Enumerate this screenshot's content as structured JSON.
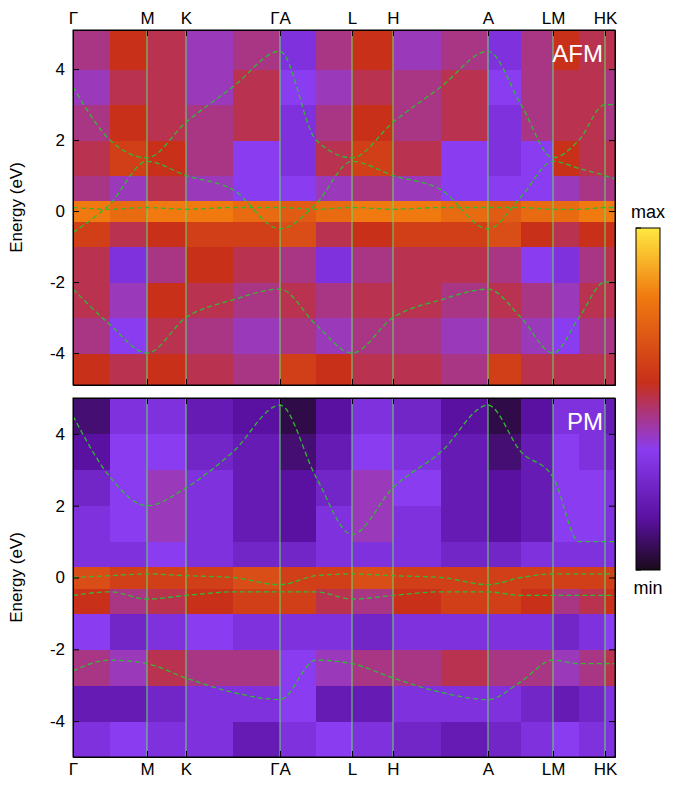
{
  "chart_data": [
    {
      "type": "heatmap",
      "title": "AFM",
      "y_label": "Energy (eV)",
      "xlim": [
        0,
        542
      ],
      "ylim": [
        -4.9,
        5.1
      ],
      "xticks": [
        {
          "value": 0,
          "label": "Γ"
        },
        {
          "value": 74,
          "label": "M"
        },
        {
          "value": 113,
          "label": "K"
        },
        {
          "value": 207,
          "label": "ΓA"
        },
        {
          "value": 279,
          "label": "L"
        },
        {
          "value": 320,
          "label": "H"
        },
        {
          "value": 415,
          "label": "A"
        },
        {
          "value": 480,
          "label": "LM"
        },
        {
          "value": 532,
          "label": "HK"
        }
      ],
      "yticks": [
        -4,
        -2,
        0,
        2,
        4
      ],
      "grid": "x",
      "cells": {
        "x_edges": [
          0,
          37,
          74,
          113,
          160,
          207,
          243,
          279,
          320,
          368,
          415,
          448,
          480,
          506,
          532,
          542
        ],
        "y_edges": [
          -4.9,
          -4,
          -3,
          -2,
          -1,
          -0.3,
          0.3,
          1,
          2,
          3,
          4,
          5.1
        ],
        "values": [
          [
            0.55,
            0.5,
            0.55,
            0.5,
            0.45,
            0.6,
            0.55,
            0.5,
            0.5,
            0.45,
            0.6,
            0.5,
            0.5,
            0.5,
            0.5
          ],
          [
            0.45,
            0.35,
            0.5,
            0.45,
            0.4,
            0.45,
            0.4,
            0.45,
            0.45,
            0.4,
            0.45,
            0.4,
            0.35,
            0.45,
            0.45
          ],
          [
            0.5,
            0.4,
            0.55,
            0.5,
            0.45,
            0.5,
            0.45,
            0.5,
            0.5,
            0.45,
            0.5,
            0.45,
            0.4,
            0.5,
            0.5
          ],
          [
            0.5,
            0.3,
            0.45,
            0.55,
            0.5,
            0.45,
            0.3,
            0.45,
            0.5,
            0.5,
            0.45,
            0.35,
            0.3,
            0.45,
            0.5
          ],
          [
            0.6,
            0.5,
            0.55,
            0.6,
            0.6,
            0.65,
            0.5,
            0.55,
            0.6,
            0.6,
            0.65,
            0.55,
            0.5,
            0.55,
            0.55
          ],
          [
            0.8,
            0.75,
            0.8,
            0.8,
            0.75,
            0.7,
            0.75,
            0.8,
            0.8,
            0.75,
            0.7,
            0.75,
            0.75,
            0.8,
            0.8
          ],
          [
            0.45,
            0.4,
            0.5,
            0.4,
            0.35,
            0.35,
            0.4,
            0.45,
            0.4,
            0.35,
            0.35,
            0.35,
            0.4,
            0.45,
            0.45
          ],
          [
            0.5,
            0.6,
            0.55,
            0.45,
            0.35,
            0.3,
            0.5,
            0.6,
            0.5,
            0.35,
            0.3,
            0.35,
            0.55,
            0.5,
            0.5
          ],
          [
            0.45,
            0.55,
            0.5,
            0.45,
            0.5,
            0.3,
            0.45,
            0.55,
            0.45,
            0.5,
            0.3,
            0.45,
            0.5,
            0.5,
            0.45
          ],
          [
            0.4,
            0.5,
            0.5,
            0.4,
            0.5,
            0.35,
            0.4,
            0.5,
            0.45,
            0.5,
            0.35,
            0.45,
            0.5,
            0.5,
            0.45
          ],
          [
            0.45,
            0.55,
            0.5,
            0.4,
            0.45,
            0.3,
            0.45,
            0.55,
            0.4,
            0.45,
            0.3,
            0.45,
            0.55,
            0.5,
            0.5
          ]
        ]
      },
      "bands": {
        "x": [
          0,
          37,
          74,
          113,
          160,
          207,
          243,
          279,
          320,
          368,
          415,
          448,
          480,
          506,
          532,
          542
        ],
        "series": [
          {
            "color": "#33b833",
            "line_style": "dashed",
            "values": [
              0.1,
              0.05,
              0.1,
              0.05,
              0.1,
              0.1,
              0.05,
              0.1,
              0.05,
              0.1,
              0.1,
              0.1,
              0.05,
              0.05,
              0.1,
              0.1
            ]
          },
          {
            "color": "#33b833",
            "line_style": "dashed",
            "values": [
              -0.6,
              0.2,
              1.4,
              1.0,
              0.6,
              -0.5,
              0.2,
              1.4,
              1.0,
              0.6,
              -0.5,
              0.4,
              1.4,
              1.2,
              1.0,
              0.9
            ]
          },
          {
            "color": "#33b833",
            "line_style": "dashed",
            "values": [
              -2.2,
              -3.2,
              -4.0,
              -3.0,
              -2.5,
              -2.2,
              -3.2,
              -4.0,
              -3.0,
              -2.5,
              -2.2,
              -3.0,
              -4.0,
              -3.0,
              -2.0,
              -2.0
            ]
          },
          {
            "color": "#33b833",
            "line_style": "dashed",
            "values": [
              3.5,
              2.0,
              1.5,
              2.5,
              3.5,
              4.5,
              2.0,
              1.5,
              2.5,
              3.5,
              4.5,
              3.0,
              1.5,
              2.0,
              3.0,
              3.0
            ]
          }
        ]
      },
      "colorbar": {
        "range": [
          0,
          1
        ],
        "ticks": [
          {
            "value": 1,
            "label": "max"
          },
          {
            "value": 0,
            "label": "min"
          }
        ]
      }
    },
    {
      "type": "heatmap",
      "title": "PM",
      "y_label": "Energy (eV)",
      "xlim": [
        0,
        542
      ],
      "ylim": [
        -5,
        5
      ],
      "xticks": [
        {
          "value": 0,
          "label": "Γ"
        },
        {
          "value": 74,
          "label": "M"
        },
        {
          "value": 113,
          "label": "K"
        },
        {
          "value": 207,
          "label": "ΓA"
        },
        {
          "value": 279,
          "label": "L"
        },
        {
          "value": 320,
          "label": "H"
        },
        {
          "value": 415,
          "label": "A"
        },
        {
          "value": 480,
          "label": "LM"
        },
        {
          "value": 532,
          "label": "HK"
        }
      ],
      "yticks": [
        -4,
        -2,
        0,
        2,
        4
      ],
      "grid": "x",
      "cells": {
        "x_edges": [
          0,
          37,
          74,
          113,
          160,
          207,
          243,
          279,
          320,
          368,
          415,
          448,
          480,
          506,
          532,
          542
        ],
        "y_edges": [
          -5,
          -4,
          -3,
          -2,
          -1,
          -0.3,
          0.3,
          1,
          2,
          3,
          4,
          5
        ],
        "values": [
          [
            0.3,
            0.35,
            0.3,
            0.3,
            0.2,
            0.3,
            0.35,
            0.3,
            0.25,
            0.2,
            0.25,
            0.3,
            0.35,
            0.3,
            0.3
          ],
          [
            0.2,
            0.2,
            0.25,
            0.3,
            0.3,
            0.35,
            0.2,
            0.2,
            0.3,
            0.3,
            0.3,
            0.25,
            0.2,
            0.25,
            0.3
          ],
          [
            0.45,
            0.4,
            0.5,
            0.45,
            0.45,
            0.35,
            0.4,
            0.45,
            0.45,
            0.5,
            0.45,
            0.45,
            0.4,
            0.45,
            0.5
          ],
          [
            0.35,
            0.25,
            0.3,
            0.35,
            0.3,
            0.3,
            0.3,
            0.25,
            0.3,
            0.3,
            0.3,
            0.3,
            0.25,
            0.3,
            0.35
          ],
          [
            0.55,
            0.45,
            0.5,
            0.55,
            0.6,
            0.6,
            0.5,
            0.45,
            0.55,
            0.6,
            0.6,
            0.55,
            0.45,
            0.5,
            0.55
          ],
          [
            0.65,
            0.6,
            0.6,
            0.6,
            0.65,
            0.6,
            0.6,
            0.65,
            0.6,
            0.6,
            0.6,
            0.6,
            0.6,
            0.6,
            0.6
          ],
          [
            0.3,
            0.3,
            0.35,
            0.3,
            0.25,
            0.25,
            0.3,
            0.3,
            0.3,
            0.25,
            0.25,
            0.3,
            0.3,
            0.3,
            0.3
          ],
          [
            0.3,
            0.35,
            0.4,
            0.3,
            0.2,
            0.15,
            0.3,
            0.4,
            0.3,
            0.2,
            0.15,
            0.2,
            0.35,
            0.35,
            0.3
          ],
          [
            0.25,
            0.35,
            0.4,
            0.3,
            0.2,
            0.15,
            0.25,
            0.4,
            0.35,
            0.2,
            0.15,
            0.2,
            0.35,
            0.35,
            0.3
          ],
          [
            0.15,
            0.35,
            0.35,
            0.25,
            0.2,
            0.1,
            0.2,
            0.35,
            0.3,
            0.2,
            0.1,
            0.2,
            0.35,
            0.3,
            0.25
          ],
          [
            0.1,
            0.3,
            0.3,
            0.2,
            0.15,
            0.05,
            0.15,
            0.3,
            0.25,
            0.15,
            0.05,
            0.15,
            0.3,
            0.3,
            0.2
          ]
        ]
      },
      "bands": {
        "x": [
          0,
          37,
          74,
          113,
          160,
          207,
          243,
          279,
          320,
          368,
          415,
          448,
          480,
          506,
          532,
          542
        ],
        "series": [
          {
            "color": "#33b833",
            "line_style": "dashed",
            "values": [
              0.0,
              0.05,
              0.1,
              0.05,
              0.0,
              -0.2,
              0.05,
              0.1,
              0.05,
              0.0,
              -0.2,
              0.0,
              0.1,
              0.1,
              0.1,
              0.1
            ]
          },
          {
            "color": "#33b833",
            "line_style": "dashed",
            "values": [
              -0.5,
              -0.4,
              -0.6,
              -0.5,
              -0.4,
              -0.4,
              -0.4,
              -0.6,
              -0.5,
              -0.4,
              -0.4,
              -0.5,
              -0.5,
              -0.5,
              -0.5,
              -0.5
            ]
          },
          {
            "color": "#33b833",
            "line_style": "dashed",
            "values": [
              -2.6,
              -2.3,
              -2.4,
              -2.8,
              -3.2,
              -3.4,
              -2.3,
              -2.4,
              -2.8,
              -3.2,
              -3.4,
              -2.9,
              -2.3,
              -2.4,
              -2.4,
              -2.4
            ]
          },
          {
            "color": "#33b833",
            "line_style": "dashed",
            "values": [
              4.5,
              2.8,
              2.0,
              2.5,
              3.5,
              4.8,
              2.8,
              1.2,
              2.5,
              3.5,
              4.8,
              3.5,
              2.8,
              1.0,
              1.0,
              1.0
            ]
          }
        ]
      }
    }
  ]
}
